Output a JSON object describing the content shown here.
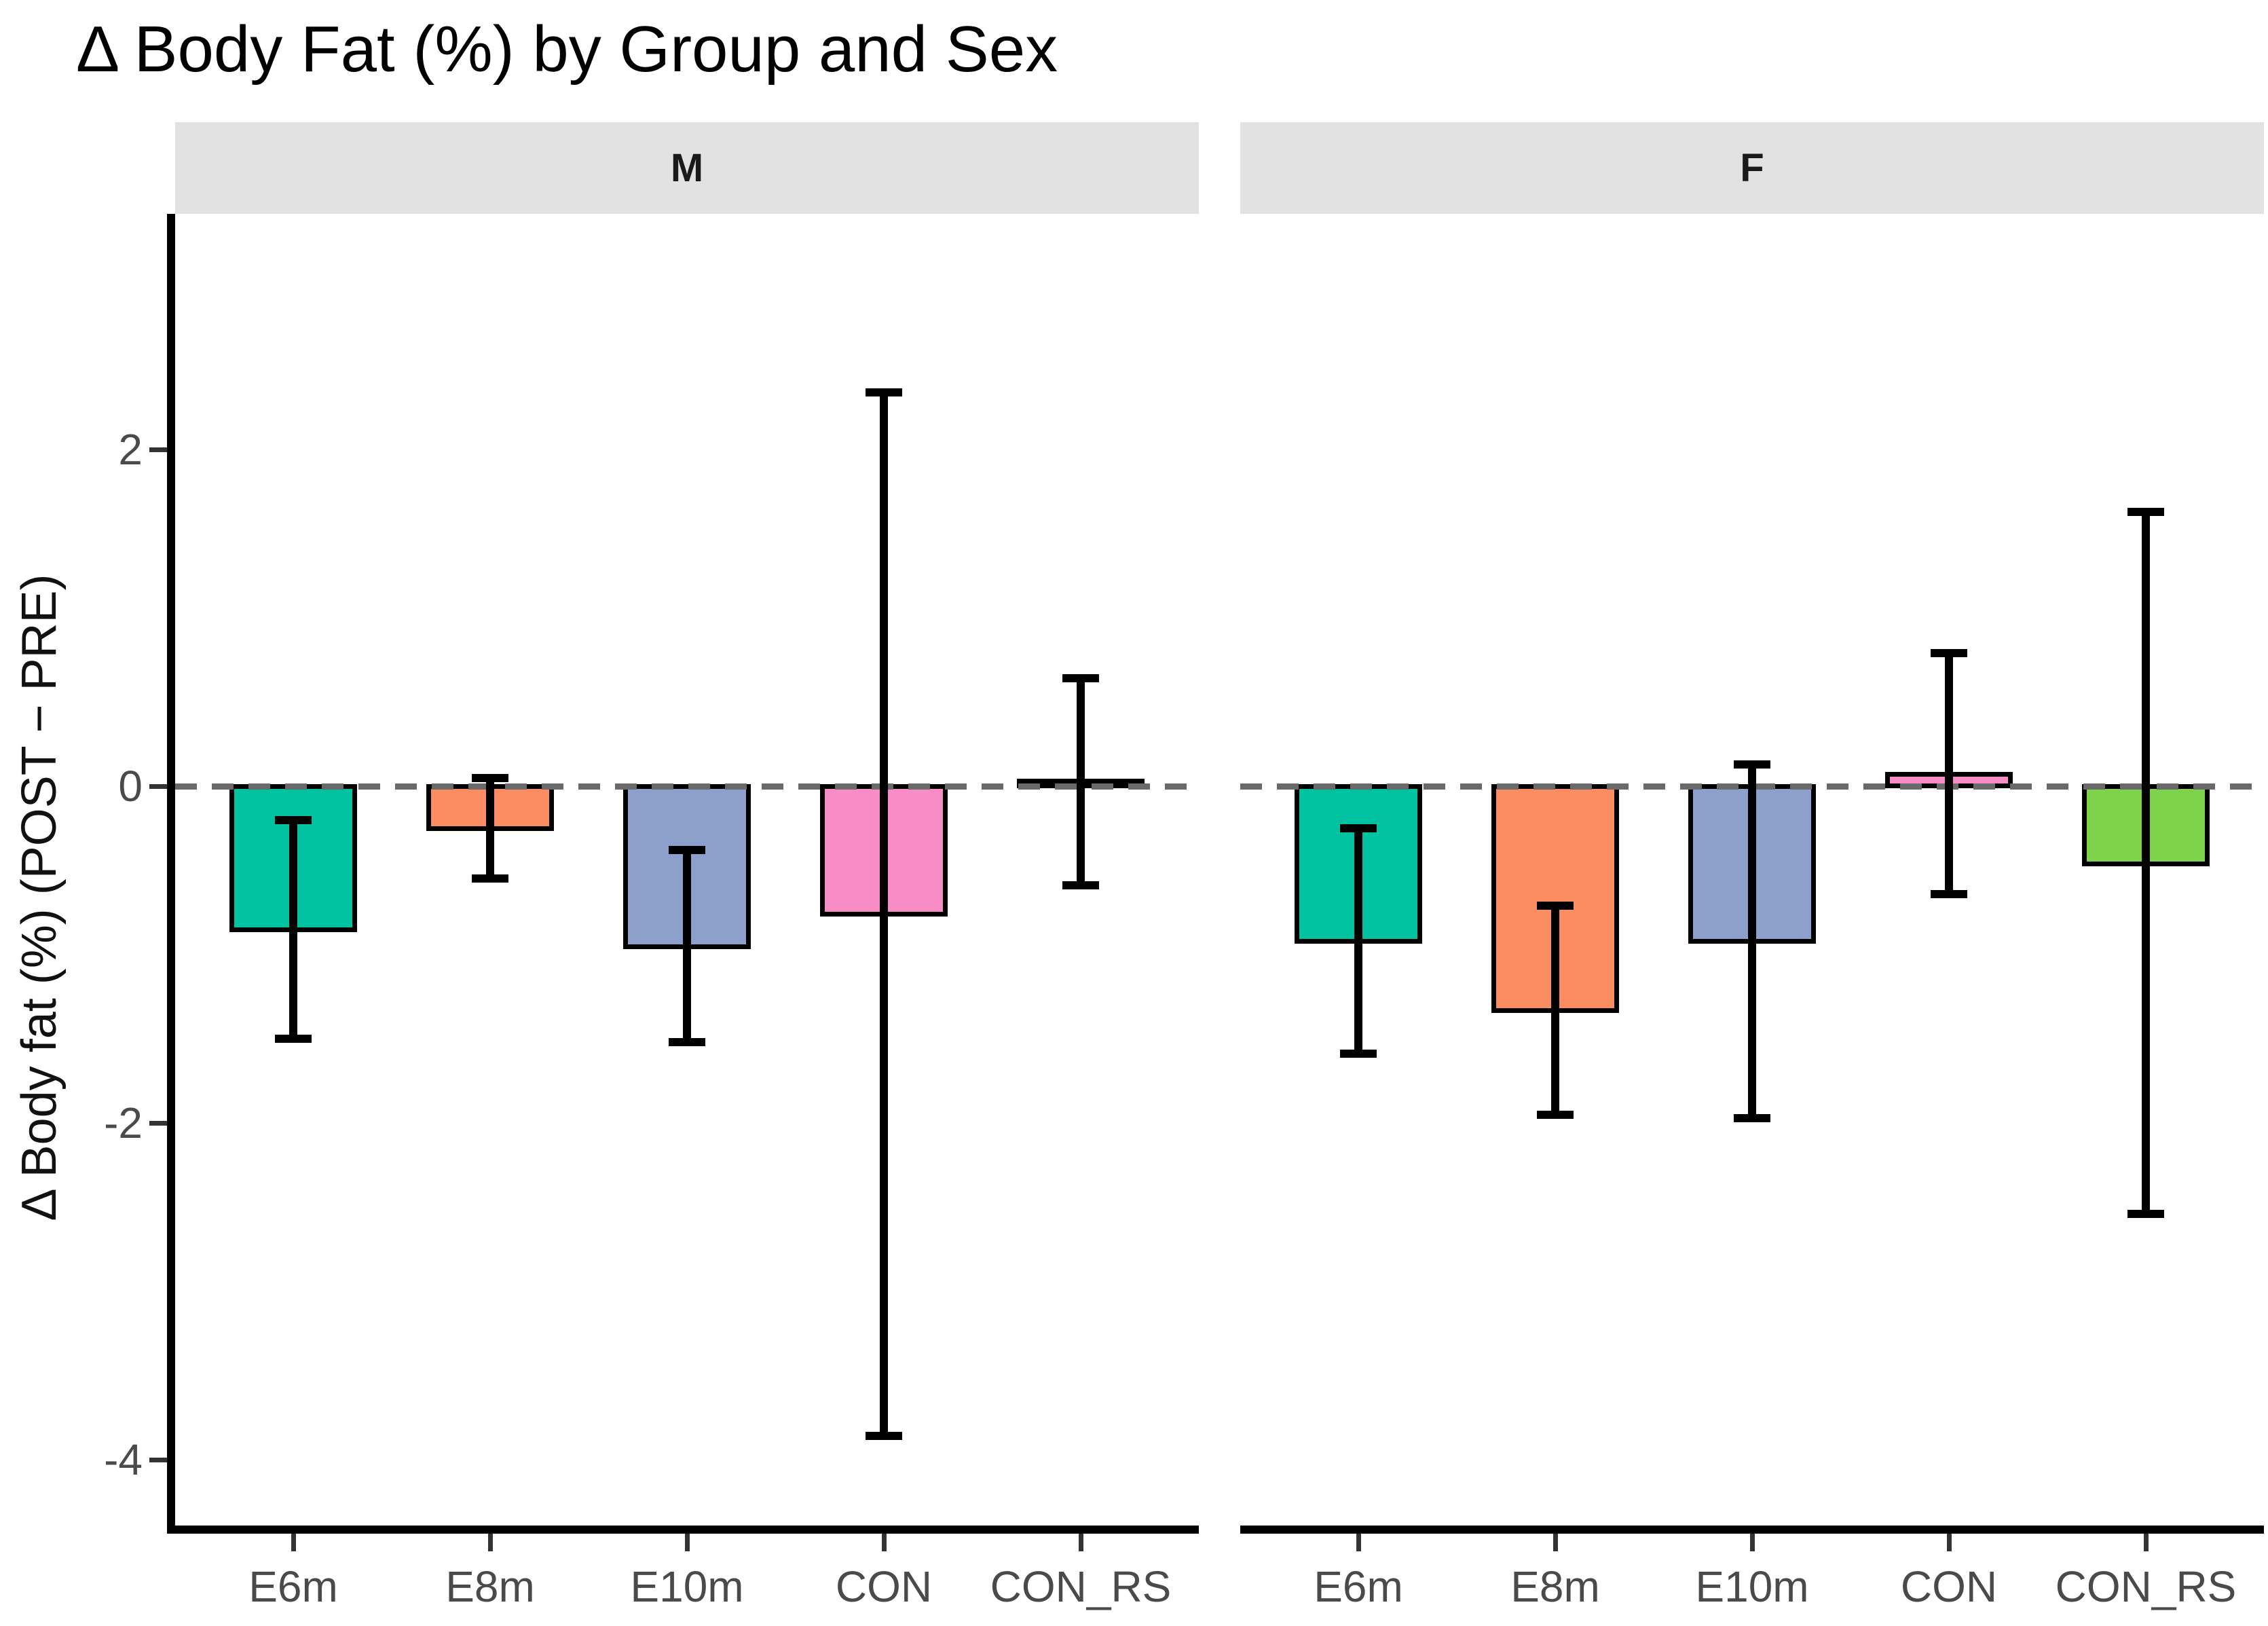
{
  "title": "Δ Body Fat (%) by Group and Sex",
  "y_axis": {
    "label": "Δ Body fat (%) (POST − PRE)",
    "ticks": [
      2,
      0,
      -2,
      -4
    ],
    "tick_labels": [
      "2",
      "0",
      "-2",
      "-4"
    ]
  },
  "x_axis": {
    "categories": [
      "E6m",
      "E8m",
      "E10m",
      "CON",
      "CON_RS"
    ]
  },
  "facet_strips": [
    "M",
    "F"
  ],
  "colors": {
    "strip_background": "#E2E2E2",
    "axis_text": "#4a4a4a",
    "zero_line": "#6a6a6a",
    "bar_outline": "#000000",
    "bar_fills": [
      "#00C2A0",
      "#FC8D62",
      "#8DA0CB",
      "#F88CC6",
      "#7FD24B"
    ]
  },
  "chart_data": {
    "type": "bar",
    "title": "Δ Body Fat (%) by Group and Sex",
    "xlabel": "",
    "ylabel": "Δ Body fat (%) (POST − PRE)",
    "facets": [
      "M",
      "F"
    ],
    "categories": [
      "E6m",
      "E8m",
      "E10m",
      "CON",
      "CON_RS"
    ],
    "yticks": [
      2,
      0,
      -2,
      -4
    ],
    "ylim": [
      -4.4,
      3.4
    ],
    "hline_y": 0,
    "hline_style": "dashed",
    "grid": false,
    "legend": "none",
    "error_bars": true,
    "series": [
      {
        "facet": "M",
        "values": [
          -0.85,
          -0.25,
          -0.95,
          -0.76,
          0.03
        ],
        "error_high": [
          -0.2,
          0.05,
          -0.38,
          2.34,
          0.64
        ],
        "error_low": [
          -1.5,
          -0.55,
          -1.52,
          -3.86,
          -0.59
        ]
      },
      {
        "facet": "F",
        "values": [
          -0.92,
          -1.33,
          -0.92,
          0.07,
          -0.46
        ],
        "error_high": [
          -0.25,
          -0.71,
          0.13,
          0.79,
          1.63
        ],
        "error_low": [
          -1.59,
          -1.95,
          -1.97,
          -0.64,
          -2.54
        ]
      }
    ],
    "bar_colors": [
      "#00C2A0",
      "#FC8D62",
      "#8DA0CB",
      "#F88CC6",
      "#7FD24B"
    ]
  }
}
